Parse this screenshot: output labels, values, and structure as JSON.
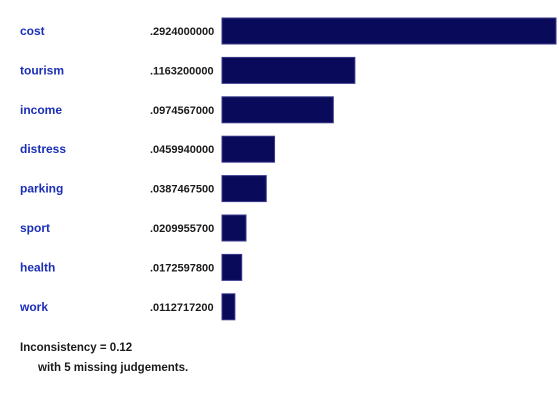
{
  "chart_data": {
    "type": "bar",
    "orientation": "horizontal",
    "categories": [
      "cost",
      "tourism",
      "income",
      "distress",
      "parking",
      "sport",
      "health",
      "work"
    ],
    "values": [
      0.2924,
      0.11632,
      0.0974567,
      0.045994,
      0.03874675,
      0.02099557,
      0.01725978,
      0.01127172
    ],
    "value_labels": [
      ".2924000000",
      ".1163200000",
      ".0974567000",
      ".0459940000",
      ".0387467500",
      ".0209955700",
      ".0172597800",
      ".0112717200"
    ],
    "title": "",
    "xlabel": "",
    "ylabel": "",
    "grid": false,
    "legend": "none"
  },
  "colors": {
    "bar": "#0a0a5a",
    "bar_edge": "#3a3a8a",
    "category_text": "#1a2eb8",
    "value_text": "#1a1a1a"
  },
  "footer": {
    "inconsistency": "Inconsistency = 0.12",
    "missing": "with 5 missing judgements."
  }
}
